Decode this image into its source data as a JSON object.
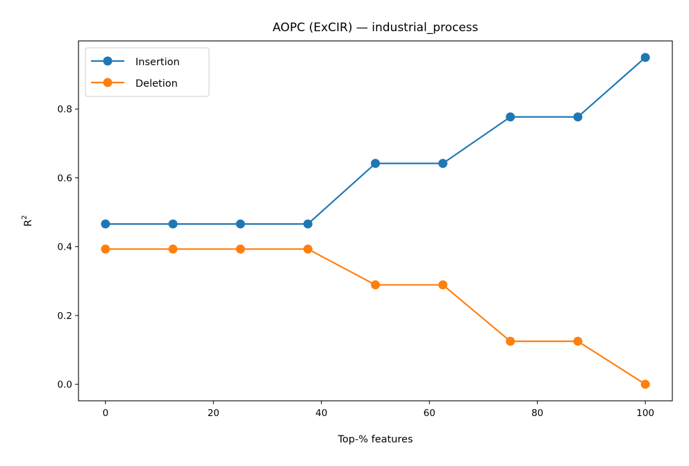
{
  "chart_data": {
    "type": "line",
    "title": "AOPC (ExCIR) — industrial_process",
    "xlabel": "Top-% features",
    "ylabel": "R",
    "ylabel_superscript": "2",
    "x": [
      0,
      12.5,
      25,
      37.5,
      50,
      62.5,
      75,
      87.5,
      100
    ],
    "xlim": [
      -5,
      105
    ],
    "ylim": [
      -0.048,
      0.998
    ],
    "xticks": [
      0,
      20,
      40,
      60,
      80,
      100
    ],
    "xtick_labels": [
      "0",
      "20",
      "40",
      "60",
      "80",
      "100"
    ],
    "yticks": [
      0.0,
      0.2,
      0.4,
      0.6,
      0.8
    ],
    "ytick_labels": [
      "0.0",
      "0.2",
      "0.4",
      "0.6",
      "0.8"
    ],
    "grid": false,
    "legend_position": "top-left",
    "series": [
      {
        "name": "Insertion",
        "color": "#1f77b4",
        "marker": "circle",
        "values": [
          0.466,
          0.466,
          0.466,
          0.466,
          0.642,
          0.642,
          0.777,
          0.777,
          0.95
        ]
      },
      {
        "name": "Deletion",
        "color": "#ff7f0e",
        "marker": "circle",
        "values": [
          0.393,
          0.393,
          0.393,
          0.393,
          0.289,
          0.289,
          0.125,
          0.125,
          0.0
        ]
      }
    ]
  }
}
